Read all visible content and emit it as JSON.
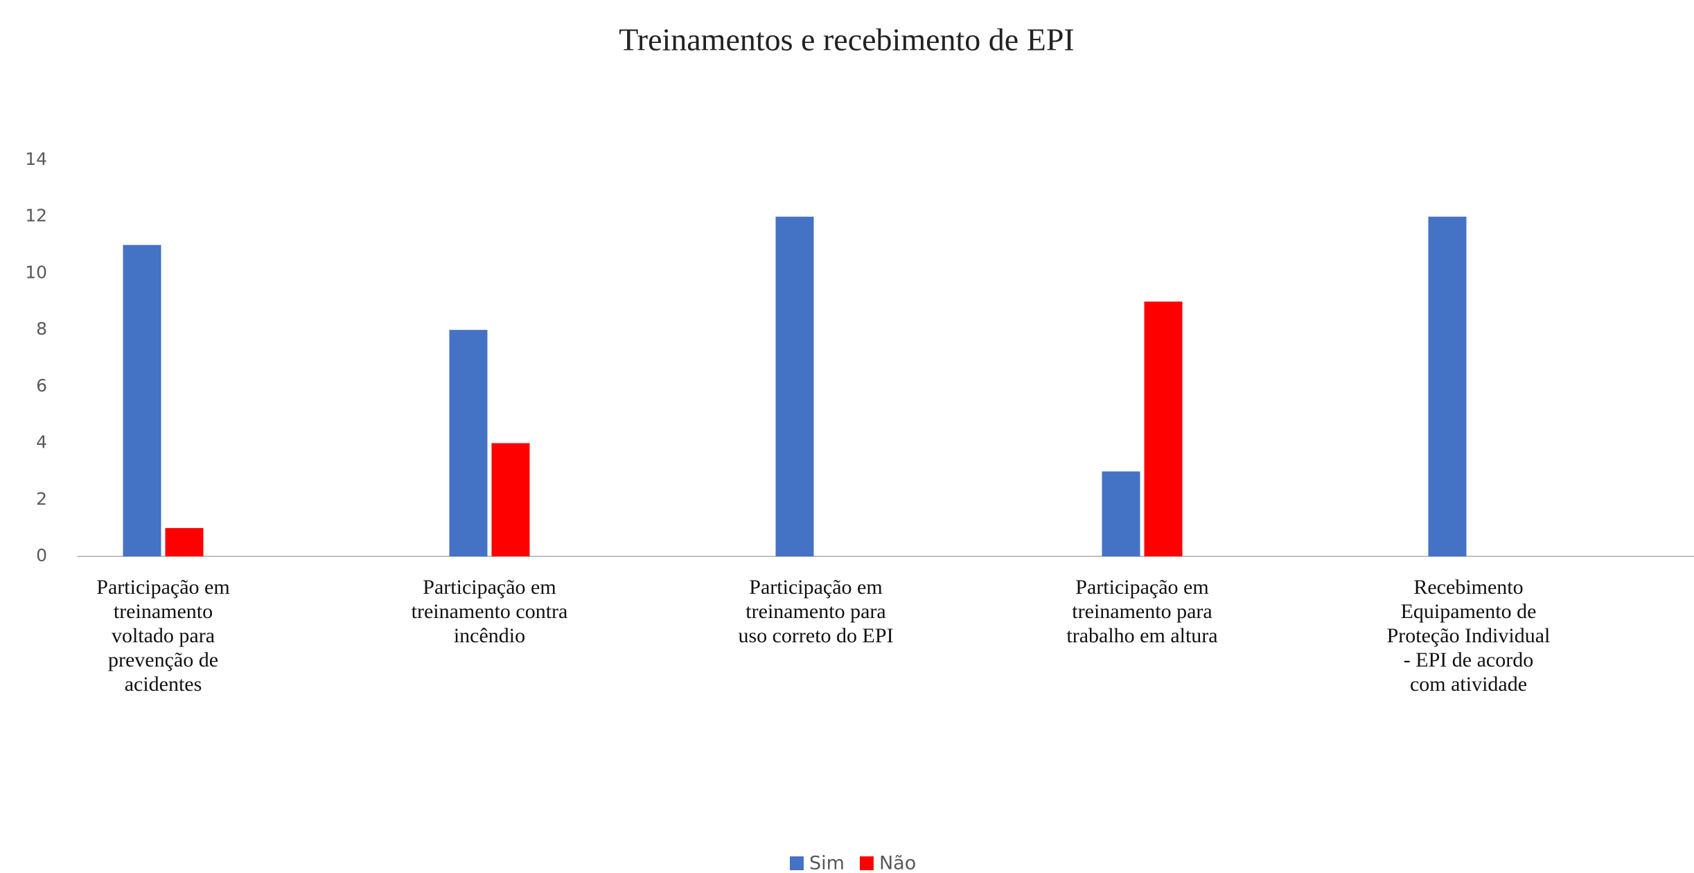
{
  "chart_data": {
    "type": "bar",
    "title": "Treinamentos e recebimento de EPI",
    "categories": [
      "Participação em treinamento voltado para prevenção de acidentes",
      "Participação em treinamento contra incêndio",
      "Participação em treinamento para uso correto do EPI",
      "Participação em treinamento para trabalho em altura",
      "Recebimento Equipamento de Proteção Individual - EPI de acordo com atividade"
    ],
    "series": [
      {
        "name": "Sim",
        "color": "#4472c4",
        "values": [
          11,
          8,
          12,
          3,
          12
        ]
      },
      {
        "name": "Não",
        "color": "#ff0000",
        "values": [
          1,
          4,
          0,
          9,
          0
        ]
      }
    ],
    "ylim": [
      0,
      14
    ],
    "yticks": [
      0,
      2,
      4,
      6,
      8,
      10,
      12,
      14
    ],
    "grid": false,
    "legend": "bottom"
  }
}
